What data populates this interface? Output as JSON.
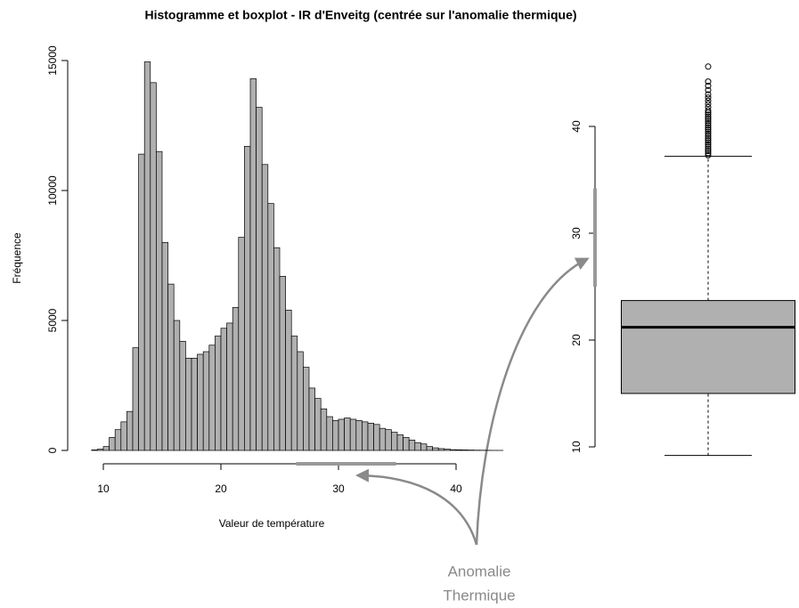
{
  "chart_data": [
    {
      "type": "histogram",
      "title": "Histogramme et boxplot - IR d'Enveitg (centrée sur l'anomalie thermique)",
      "x_label": "Valeur de température",
      "y_label": "Fréquence",
      "color": "#b0b0b0",
      "bins": [
        9,
        9.5,
        10,
        10.5,
        11,
        11.5,
        12,
        12.5,
        13,
        13.5,
        14,
        14.5,
        15,
        15.5,
        16,
        16.5,
        17,
        17.5,
        18,
        18.5,
        19,
        19.5,
        20,
        20.5,
        21,
        21.5,
        22,
        22.5,
        23,
        23.5,
        24,
        24.5,
        25,
        25.5,
        26,
        26.5,
        27,
        27.5,
        28,
        28.5,
        29,
        29.5,
        30,
        30.5,
        31,
        31.5,
        32,
        32.5,
        33,
        33.5,
        34,
        34.5,
        35,
        35.5,
        36,
        36.5,
        37,
        37.5,
        38,
        38.5,
        39,
        39.5,
        40,
        40.5,
        41,
        41.5,
        42,
        42.5,
        43,
        43.5,
        44
      ],
      "values": [
        20,
        50,
        150,
        500,
        800,
        1100,
        1500,
        3950,
        11400,
        14950,
        14150,
        11500,
        8000,
        6400,
        5000,
        4200,
        3550,
        3550,
        3700,
        3800,
        4050,
        4400,
        4700,
        4900,
        5500,
        8200,
        11700,
        14300,
        13200,
        11000,
        9500,
        7800,
        6700,
        5400,
        4400,
        3800,
        3200,
        2400,
        2000,
        1600,
        1300,
        1150,
        1200,
        1250,
        1200,
        1150,
        1100,
        1050,
        1000,
        850,
        800,
        700,
        600,
        500,
        400,
        300,
        250,
        150,
        100,
        70,
        50,
        30,
        25,
        20,
        15,
        10,
        8,
        5,
        3,
        2
      ],
      "xlim": [
        8,
        45
      ],
      "xticks": [
        10,
        20,
        30,
        40
      ],
      "ylim": [
        0,
        15000
      ],
      "yticks": [
        0,
        5000,
        10000,
        15000
      ],
      "highlight": [
        26.4,
        34.9
      ]
    },
    {
      "type": "box",
      "color": "#b0b0b0",
      "whisker_low": 9.2,
      "q1": 15,
      "median": 21.2,
      "q3": 23.7,
      "whisker_high": 37.2,
      "outliers": [
        37.3,
        37.5,
        37.7,
        37.9,
        38.1,
        38.3,
        38.5,
        38.7,
        38.9,
        39.1,
        39.3,
        39.5,
        39.7,
        39.9,
        40.1,
        40.3,
        40.5,
        40.7,
        40.9,
        41.1,
        41.3,
        41.5,
        41.8,
        42.1,
        42.4,
        42.7,
        43.0,
        43.4,
        43.8,
        44.2,
        45.6
      ],
      "ylim": [
        8.5,
        46
      ],
      "yticks": [
        10,
        20,
        30,
        40
      ],
      "highlight": [
        25,
        34.2
      ]
    }
  ],
  "annotation": {
    "lines": [
      "Anomalie",
      "Thermique"
    ]
  }
}
